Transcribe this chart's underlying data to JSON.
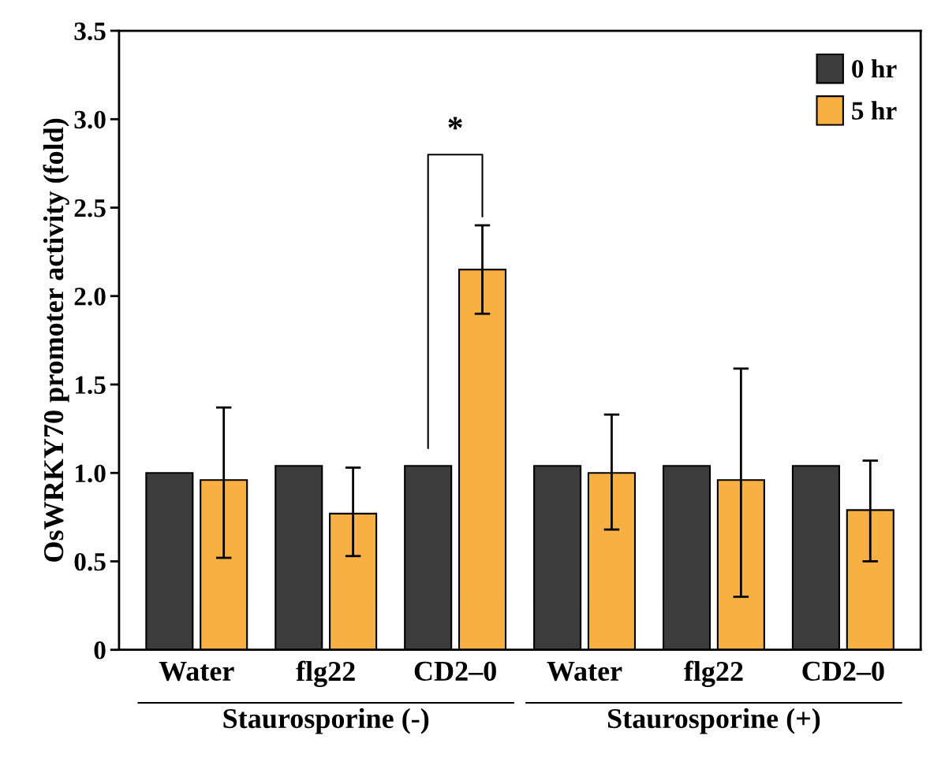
{
  "chart_data": {
    "type": "bar",
    "ylabel": "OsWRKY70 promoter activity (fold)",
    "categories": [
      "Water",
      "flg22",
      "CD2–0",
      "Water",
      "flg22",
      "CD2–0"
    ],
    "series": [
      {
        "name": "0 hr",
        "color": "#3c3c3c",
        "values": [
          1.0,
          1.04,
          1.04,
          1.04,
          1.04,
          1.04
        ]
      },
      {
        "name": "5 hr",
        "color": "#f9b043",
        "values": [
          0.96,
          0.77,
          2.15,
          1.0,
          0.96,
          0.79
        ],
        "errors": [
          [
            0.52,
            1.37
          ],
          [
            0.53,
            1.03
          ],
          [
            1.9,
            2.4
          ],
          [
            0.68,
            1.33
          ],
          [
            0.3,
            1.59
          ],
          [
            0.5,
            1.07
          ]
        ]
      }
    ],
    "ylim": [
      0,
      3.5
    ],
    "yticks": [
      0,
      0.5,
      {
        "value": 1,
        "label": "1.0"
      },
      1.5,
      {
        "value": 2,
        "label": "2.0"
      },
      2.5,
      {
        "value": 3,
        "label": "3.0"
      },
      3.5
    ],
    "legend": "top right",
    "grid": false,
    "annotations": [
      "*",
      "Staurosporine (-)",
      "Staurosporine (+)"
    ]
  }
}
